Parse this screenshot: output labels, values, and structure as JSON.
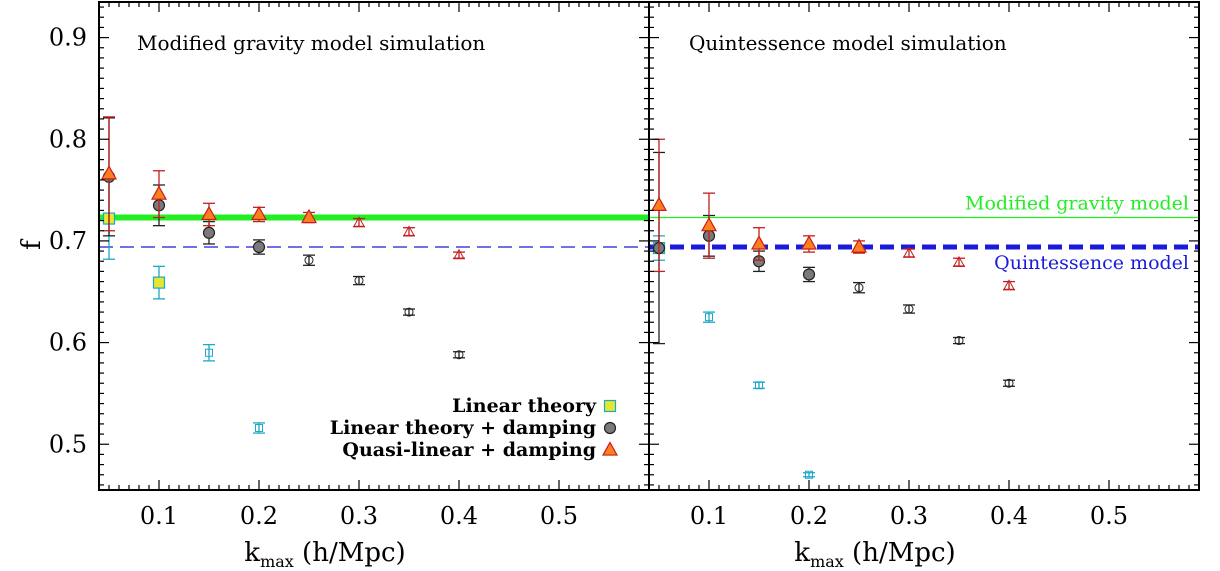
{
  "chart_data": {
    "type": "scatter",
    "ylabel": "f",
    "xlabel_main": "k",
    "xlabel_sub": "max",
    "xlabel_unit": " (h/Mpc)",
    "xlim": [
      0.04,
      0.59
    ],
    "ylim": [
      0.455,
      0.935
    ],
    "xticks": [
      0.1,
      0.2,
      0.3,
      0.4,
      0.5
    ],
    "xtick_labels": [
      "0.1",
      "0.2",
      "0.3",
      "0.4",
      "0.5"
    ],
    "yticks": [
      0.5,
      0.6,
      0.7,
      0.8,
      0.9
    ],
    "ytick_labels": [
      "0.5",
      "0.6",
      "0.7",
      "0.8",
      "0.9"
    ],
    "legend": {
      "placement": "bottom-right of left panel",
      "entries": [
        {
          "label": "Linear theory",
          "marker": "square",
          "color": "#e6e62e"
        },
        {
          "label": "Linear theory + damping",
          "marker": "circle",
          "color": "#7a7a7a"
        },
        {
          "label": "Quasi-linear + damping",
          "marker": "triangle",
          "color": "#ff7f1e"
        }
      ]
    },
    "panels": [
      {
        "title": "Modified gravity model simulation",
        "reference_lines": [
          {
            "label": "",
            "y": 0.723,
            "color": "#22ee22",
            "style": "thick-solid"
          },
          {
            "label": "",
            "y": 0.694,
            "color": "#1a1adb",
            "style": "thin-dashed"
          }
        ],
        "series": [
          {
            "name": "Linear theory",
            "marker": "square",
            "points": [
              {
                "x": 0.05,
                "y": 0.722,
                "err": 0.04,
                "filled": true
              },
              {
                "x": 0.1,
                "y": 0.659,
                "err": 0.016,
                "filled": true
              },
              {
                "x": 0.15,
                "y": 0.59,
                "err": 0.008,
                "filled": false
              },
              {
                "x": 0.2,
                "y": 0.516,
                "err": 0.005,
                "filled": false
              }
            ]
          },
          {
            "name": "Linear theory + damping",
            "marker": "circle",
            "points": [
              {
                "x": 0.05,
                "y": 0.763,
                "err": 0.058,
                "filled": true
              },
              {
                "x": 0.1,
                "y": 0.735,
                "err": 0.02,
                "filled": true
              },
              {
                "x": 0.15,
                "y": 0.708,
                "err": 0.011,
                "filled": true
              },
              {
                "x": 0.2,
                "y": 0.694,
                "err": 0.007,
                "filled": true
              },
              {
                "x": 0.25,
                "y": 0.681,
                "err": 0.005,
                "filled": false
              },
              {
                "x": 0.3,
                "y": 0.661,
                "err": 0.004,
                "filled": false
              },
              {
                "x": 0.35,
                "y": 0.63,
                "err": 0.003,
                "filled": false
              },
              {
                "x": 0.4,
                "y": 0.588,
                "err": 0.003,
                "filled": false
              }
            ]
          },
          {
            "name": "Quasi-linear + damping",
            "marker": "triangle",
            "points": [
              {
                "x": 0.05,
                "y": 0.766,
                "err": 0.056,
                "filled": true
              },
              {
                "x": 0.1,
                "y": 0.746,
                "err": 0.023,
                "filled": true
              },
              {
                "x": 0.15,
                "y": 0.726,
                "err": 0.011,
                "filled": true
              },
              {
                "x": 0.2,
                "y": 0.726,
                "err": 0.007,
                "filled": true
              },
              {
                "x": 0.25,
                "y": 0.723,
                "err": 0.005,
                "filled": true
              },
              {
                "x": 0.3,
                "y": 0.718,
                "err": 0.004,
                "filled": false
              },
              {
                "x": 0.35,
                "y": 0.709,
                "err": 0.004,
                "filled": false
              },
              {
                "x": 0.4,
                "y": 0.686,
                "err": 0.003,
                "filled": false
              }
            ]
          }
        ]
      },
      {
        "title": "Quintessence model simulation",
        "reference_lines": [
          {
            "label": "Modified gravity model",
            "y": 0.723,
            "color": "#22ee22",
            "style": "thin-solid"
          },
          {
            "label": "Quintessence model",
            "y": 0.694,
            "color": "#1a1adb",
            "style": "thick-dashed"
          }
        ],
        "series": [
          {
            "name": "Linear theory",
            "marker": "square",
            "points": [
              {
                "x": 0.05,
                "y": 0.693,
                "err": 0.012,
                "filled": true
              },
              {
                "x": 0.1,
                "y": 0.625,
                "err": 0.005,
                "filled": false
              },
              {
                "x": 0.15,
                "y": 0.558,
                "err": 0.003,
                "filled": false
              },
              {
                "x": 0.2,
                "y": 0.47,
                "err": 0.002,
                "filled": false
              }
            ]
          },
          {
            "name": "Linear theory + damping",
            "marker": "circle",
            "points": [
              {
                "x": 0.05,
                "y": 0.693,
                "err": 0.094,
                "filled": true
              },
              {
                "x": 0.1,
                "y": 0.705,
                "err": 0.02,
                "filled": true
              },
              {
                "x": 0.15,
                "y": 0.68,
                "err": 0.01,
                "filled": true
              },
              {
                "x": 0.2,
                "y": 0.667,
                "err": 0.007,
                "filled": true
              },
              {
                "x": 0.25,
                "y": 0.654,
                "err": 0.005,
                "filled": false
              },
              {
                "x": 0.3,
                "y": 0.633,
                "err": 0.004,
                "filled": false
              },
              {
                "x": 0.35,
                "y": 0.602,
                "err": 0.003,
                "filled": false
              },
              {
                "x": 0.4,
                "y": 0.56,
                "err": 0.003,
                "filled": false
              }
            ]
          },
          {
            "name": "Quasi-linear + damping",
            "marker": "triangle",
            "points": [
              {
                "x": 0.05,
                "y": 0.735,
                "err": 0.065,
                "filled": true
              },
              {
                "x": 0.1,
                "y": 0.715,
                "err": 0.032,
                "filled": true
              },
              {
                "x": 0.15,
                "y": 0.697,
                "err": 0.016,
                "filled": true
              },
              {
                "x": 0.2,
                "y": 0.697,
                "err": 0.008,
                "filled": true
              },
              {
                "x": 0.25,
                "y": 0.694,
                "err": 0.006,
                "filled": true
              },
              {
                "x": 0.3,
                "y": 0.688,
                "err": 0.004,
                "filled": false
              },
              {
                "x": 0.35,
                "y": 0.679,
                "err": 0.004,
                "filled": false
              },
              {
                "x": 0.4,
                "y": 0.656,
                "err": 0.004,
                "filled": false
              }
            ]
          }
        ]
      }
    ]
  }
}
